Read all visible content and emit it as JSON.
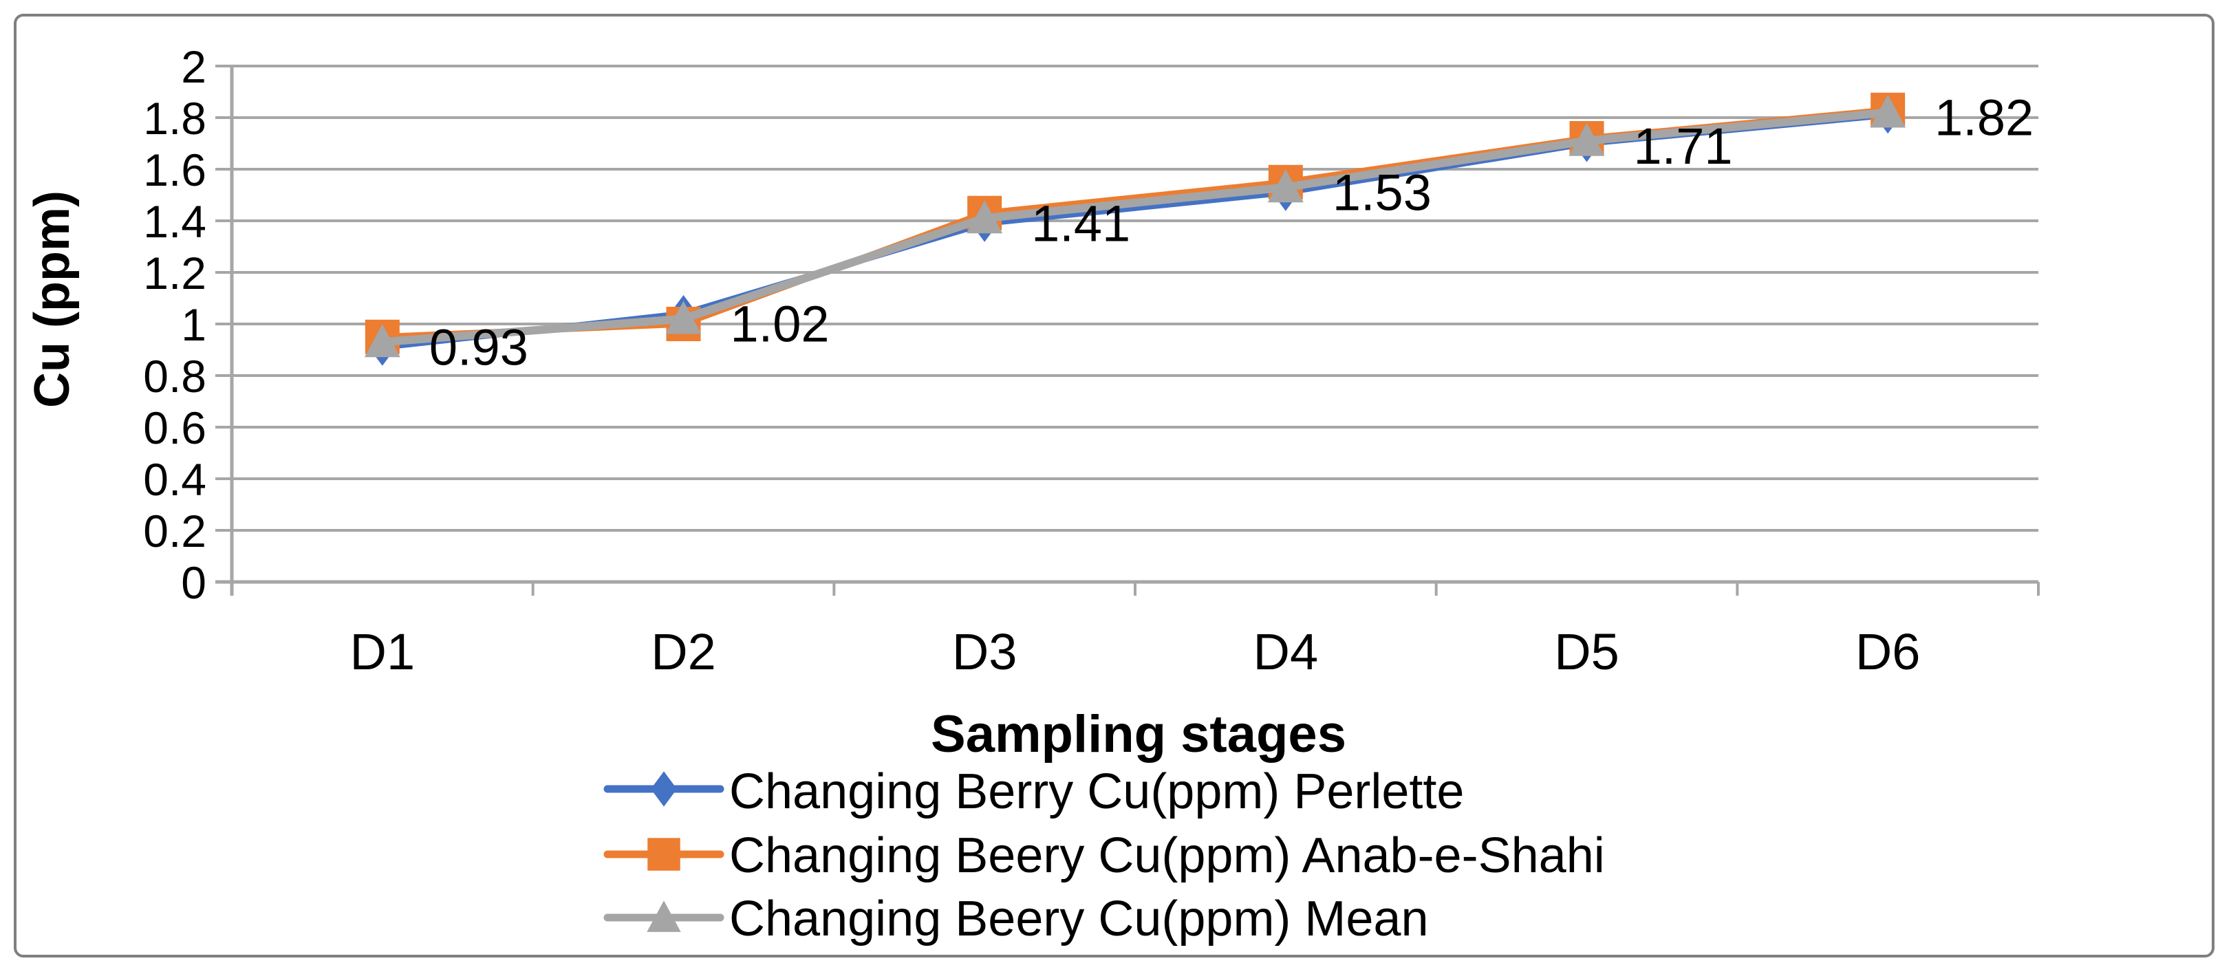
{
  "figure": {
    "background": "#FFFFFF",
    "border_color": "#7F7F7F"
  },
  "chart_data": {
    "type": "line",
    "title": "",
    "xlabel": "Sampling stages",
    "ylabel": "Cu (ppm)",
    "categories": [
      "D1",
      "D2",
      "D3",
      "D4",
      "D5",
      "D6"
    ],
    "series": [
      {
        "name": "Changing Berry Cu(ppm) Perlette",
        "color": "#4472C4",
        "marker": "diamond",
        "values": [
          0.91,
          1.04,
          1.39,
          1.51,
          1.7,
          1.81
        ]
      },
      {
        "name": "Changing Beery Cu(ppm) Anab-e-Shahi",
        "color": "#ED7D31",
        "marker": "square",
        "values": [
          0.95,
          1.0,
          1.43,
          1.55,
          1.72,
          1.83
        ]
      },
      {
        "name": "Changing Beery Cu(ppm) Mean",
        "color": "#A5A5A5",
        "marker": "triangle",
        "values": [
          0.93,
          1.02,
          1.41,
          1.53,
          1.71,
          1.82
        ]
      }
    ],
    "data_labels": {
      "series_index": 2,
      "values": [
        "0.93",
        "1.02",
        "1.41",
        "1.53",
        "1.71",
        "1.82"
      ]
    },
    "ylim": [
      0,
      2
    ],
    "ytick_step": 0.2,
    "ytick_labels": [
      "0",
      "0.2",
      "0.4",
      "0.6",
      "0.8",
      "1",
      "1.2",
      "1.4",
      "1.6",
      "1.8",
      "2"
    ],
    "grid": "horizontal",
    "gridline_color": "#A6A6A6",
    "axis_color": "#A6A6A6",
    "text_color": "#000000",
    "legend_position": "bottom",
    "legend": [
      {
        "label": "Changing Berry Cu(ppm) Perlette",
        "color": "#4472C4",
        "marker": "diamond"
      },
      {
        "label": "Changing Beery Cu(ppm) Anab-e-Shahi",
        "color": "#ED7D31",
        "marker": "square"
      },
      {
        "label": "Changing Beery Cu(ppm) Mean",
        "color": "#A5A5A5",
        "marker": "triangle"
      }
    ]
  }
}
